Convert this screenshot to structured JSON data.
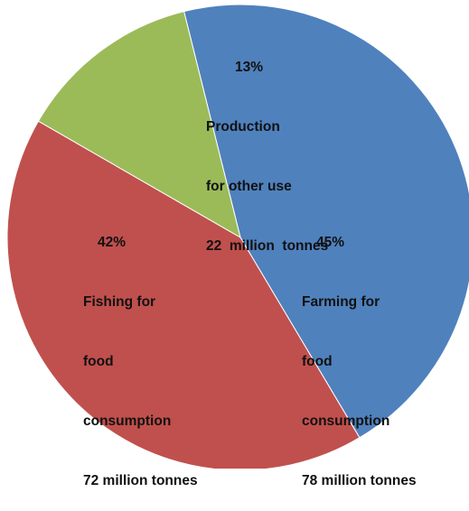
{
  "chart_data": {
    "type": "pie",
    "title": "",
    "start_angle_deg": -14,
    "direction": "clockwise",
    "slices": [
      {
        "percent_label": "45%",
        "lines": [
          "Farming for",
          "food",
          "consumption",
          "78 million tonnes"
        ],
        "value": 78,
        "unit": "million tonnes",
        "color": "#4f81bd"
      },
      {
        "percent_label": "42%",
        "lines": [
          "Fishing for",
          "food",
          "consumption",
          "72 million tonnes"
        ],
        "value": 72,
        "unit": "million tonnes",
        "color": "#c0504d"
      },
      {
        "percent_label": "13%",
        "lines": [
          "Production",
          "for other use",
          "22  million  tonnes"
        ],
        "value": 22,
        "unit": "million tonnes",
        "color": "#9bbb59"
      }
    ]
  }
}
